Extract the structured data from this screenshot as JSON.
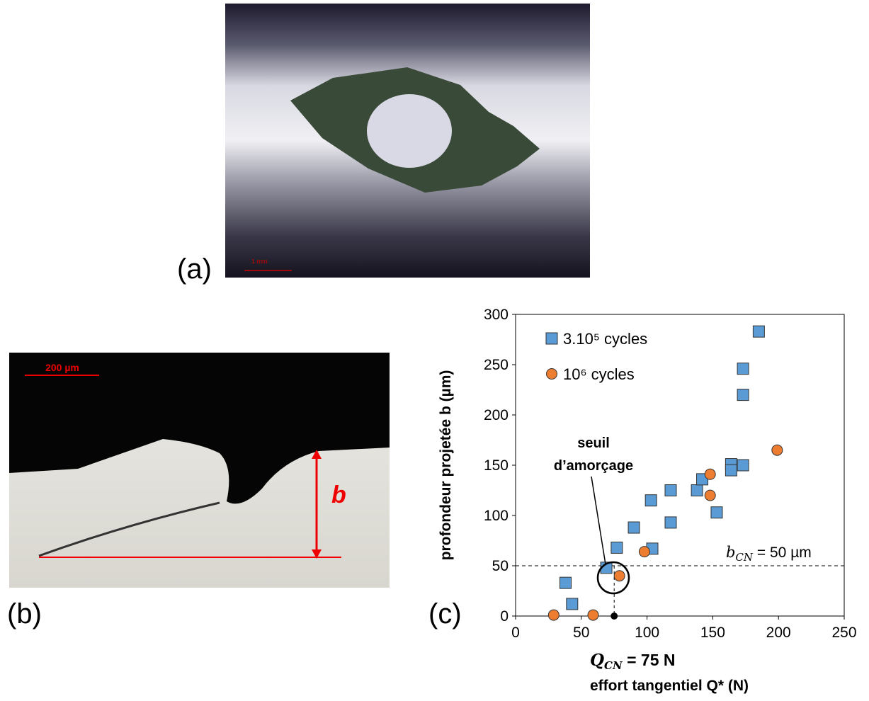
{
  "panels": {
    "a": "(a)",
    "b": "(b)",
    "c": "(c)"
  },
  "photo_a": {
    "scale_bar": "1 mm"
  },
  "photo_b": {
    "scale_bar": "200 µm",
    "depth_label": "b"
  },
  "chart_data": {
    "type": "scatter",
    "xlabel": "effort tangentiel Q* (N)",
    "ylabel": "profondeur projetée b (µm)",
    "xlim": [
      0,
      250
    ],
    "ylim": [
      0,
      300
    ],
    "xticks": [
      0,
      50,
      100,
      150,
      200,
      250
    ],
    "yticks": [
      0,
      50,
      100,
      150,
      200,
      250,
      300
    ],
    "legend": "upper-left",
    "series": [
      {
        "name": "3.10⁵ cycles",
        "marker": "square",
        "color": "#5b9bd5",
        "x": [
          38,
          43,
          69,
          77,
          90,
          103,
          104,
          118,
          118,
          138,
          142,
          153,
          164,
          164,
          173,
          173,
          173,
          185
        ],
        "values": [
          33,
          12,
          48,
          68,
          88,
          115,
          67,
          125,
          93,
          125,
          136,
          103,
          151,
          145,
          150,
          220,
          246,
          283
        ]
      },
      {
        "name": "10⁶ cycles",
        "marker": "circle",
        "color": "#ed7d31",
        "x": [
          29,
          59,
          79,
          98,
          148,
          148,
          199
        ],
        "values": [
          1,
          1,
          40,
          64,
          141,
          120,
          165
        ]
      }
    ],
    "thresholds": {
      "x": 75,
      "y": 50
    },
    "annotations": {
      "seuil": [
        "seuil",
        "d’amorçage"
      ],
      "b_cn": {
        "symbol": "b",
        "subscript": "CN",
        "text": " = 50 µm"
      },
      "q_cn": {
        "symbol": "Q",
        "subscript": "CN",
        "text": " = 75 N"
      }
    }
  }
}
